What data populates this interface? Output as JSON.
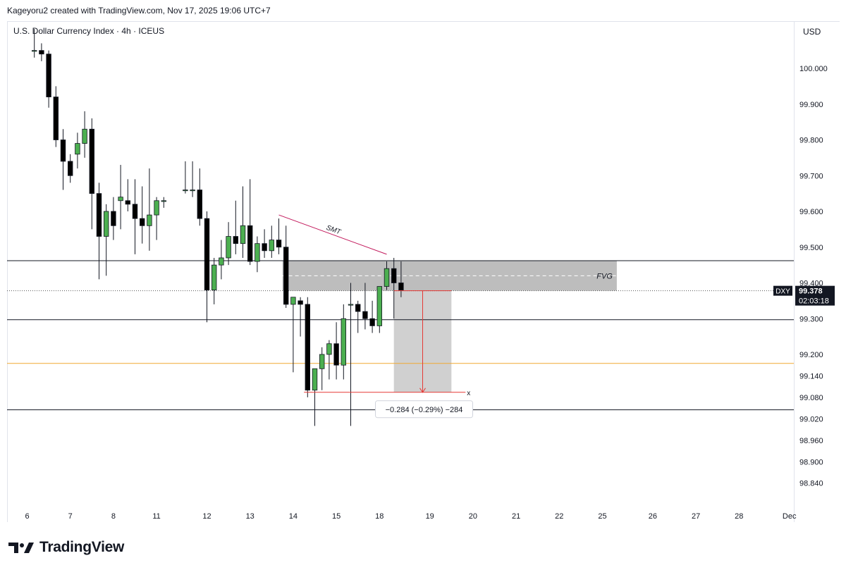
{
  "header": {
    "credit": "Kageyoru2 created with TradingView.com, Nov 17, 2025 19:06 UTC+7"
  },
  "chart_data": {
    "type": "candlestick",
    "symbol_label": "U.S. Dollar Currency Index · 4h · ICEUS",
    "currency": "USD",
    "y_ticks": [
      {
        "value": 100.0,
        "label": "100.000"
      },
      {
        "value": 99.9,
        "label": "99.900"
      },
      {
        "value": 99.8,
        "label": "99.800"
      },
      {
        "value": 99.7,
        "label": "99.700"
      },
      {
        "value": 99.6,
        "label": "99.600"
      },
      {
        "value": 99.5,
        "label": "99.500"
      },
      {
        "value": 99.4,
        "label": "99.400"
      },
      {
        "value": 99.3,
        "label": "99.300"
      },
      {
        "value": 99.2,
        "label": "99.200"
      },
      {
        "value": 99.14,
        "label": "99.140"
      },
      {
        "value": 99.08,
        "label": "99.080"
      },
      {
        "value": 99.02,
        "label": "99.020"
      },
      {
        "value": 98.96,
        "label": "98.960"
      },
      {
        "value": 98.9,
        "label": "98.900"
      },
      {
        "value": 98.84,
        "label": "98.840"
      }
    ],
    "x_ticks": [
      {
        "index": 0,
        "label": "6"
      },
      {
        "index": 6,
        "label": "7"
      },
      {
        "index": 12,
        "label": "8"
      },
      {
        "index": 18,
        "label": "11"
      },
      {
        "index": 25,
        "label": "12"
      },
      {
        "index": 31,
        "label": "13"
      },
      {
        "index": 37,
        "label": "14"
      },
      {
        "index": 43,
        "label": "15"
      },
      {
        "index": 49,
        "label": "18"
      },
      {
        "index": 56,
        "label": "19"
      },
      {
        "index": 62,
        "label": "20"
      },
      {
        "index": 68,
        "label": "21"
      },
      {
        "index": 74,
        "label": "22"
      },
      {
        "index": 80,
        "label": "25"
      },
      {
        "index": 87,
        "label": "26"
      },
      {
        "index": 93,
        "label": "27"
      },
      {
        "index": 99,
        "label": "28"
      },
      {
        "index": 106,
        "label": "Dec"
      }
    ],
    "candles": [
      {
        "i": 1,
        "o": 100.05,
        "h": 100.11,
        "l": 100.03,
        "c": 100.05
      },
      {
        "i": 2,
        "o": 100.05,
        "h": 100.07,
        "l": 100.02,
        "c": 100.04
      },
      {
        "i": 3,
        "o": 100.04,
        "h": 100.05,
        "l": 99.89,
        "c": 99.92
      },
      {
        "i": 4,
        "o": 99.92,
        "h": 99.95,
        "l": 99.78,
        "c": 99.8
      },
      {
        "i": 5,
        "o": 99.8,
        "h": 99.83,
        "l": 99.66,
        "c": 99.74
      },
      {
        "i": 6,
        "o": 99.74,
        "h": 99.76,
        "l": 99.68,
        "c": 99.7
      },
      {
        "i": 7,
        "o": 99.76,
        "h": 99.82,
        "l": 99.72,
        "c": 99.79
      },
      {
        "i": 8,
        "o": 99.79,
        "h": 99.88,
        "l": 99.75,
        "c": 99.83
      },
      {
        "i": 9,
        "o": 99.83,
        "h": 99.86,
        "l": 99.55,
        "c": 99.65
      },
      {
        "i": 10,
        "o": 99.65,
        "h": 99.68,
        "l": 99.41,
        "c": 99.53
      },
      {
        "i": 11,
        "o": 99.53,
        "h": 99.62,
        "l": 99.42,
        "c": 99.6
      },
      {
        "i": 12,
        "o": 99.6,
        "h": 99.64,
        "l": 99.52,
        "c": 99.56
      },
      {
        "i": 13,
        "o": 99.63,
        "h": 99.73,
        "l": 99.55,
        "c": 99.64
      },
      {
        "i": 14,
        "o": 99.63,
        "h": 99.69,
        "l": 99.6,
        "c": 99.62
      },
      {
        "i": 15,
        "o": 99.62,
        "h": 99.69,
        "l": 99.48,
        "c": 99.58
      },
      {
        "i": 16,
        "o": 99.58,
        "h": 99.67,
        "l": 99.51,
        "c": 99.56
      },
      {
        "i": 17,
        "o": 99.56,
        "h": 99.72,
        "l": 99.49,
        "c": 99.59
      },
      {
        "i": 18,
        "o": 99.59,
        "h": 99.64,
        "l": 99.52,
        "c": 99.63
      },
      {
        "i": 19,
        "o": 99.63,
        "h": 99.64,
        "l": 99.61,
        "c": 99.63
      },
      {
        "i": 22,
        "o": 99.66,
        "h": 99.74,
        "l": 99.65,
        "c": 99.66
      },
      {
        "i": 23,
        "o": 99.66,
        "h": 99.74,
        "l": 99.64,
        "c": 99.66
      },
      {
        "i": 24,
        "o": 99.66,
        "h": 99.72,
        "l": 99.56,
        "c": 99.58
      },
      {
        "i": 25,
        "o": 99.58,
        "h": 99.6,
        "l": 99.29,
        "c": 99.38
      },
      {
        "i": 26,
        "o": 99.38,
        "h": 99.47,
        "l": 99.34,
        "c": 99.45
      },
      {
        "i": 27,
        "o": 99.45,
        "h": 99.52,
        "l": 99.41,
        "c": 99.47
      },
      {
        "i": 28,
        "o": 99.47,
        "h": 99.57,
        "l": 99.45,
        "c": 99.53
      },
      {
        "i": 29,
        "o": 99.53,
        "h": 99.63,
        "l": 99.48,
        "c": 99.51
      },
      {
        "i": 30,
        "o": 99.51,
        "h": 99.67,
        "l": 99.47,
        "c": 99.56
      },
      {
        "i": 31,
        "o": 99.56,
        "h": 99.69,
        "l": 99.45,
        "c": 99.46
      },
      {
        "i": 32,
        "o": 99.46,
        "h": 99.53,
        "l": 99.43,
        "c": 99.51
      },
      {
        "i": 33,
        "o": 99.51,
        "h": 99.55,
        "l": 99.47,
        "c": 99.49
      },
      {
        "i": 34,
        "o": 99.49,
        "h": 99.56,
        "l": 99.47,
        "c": 99.52
      },
      {
        "i": 35,
        "o": 99.52,
        "h": 99.58,
        "l": 99.48,
        "c": 99.5
      },
      {
        "i": 36,
        "o": 99.5,
        "h": 99.56,
        "l": 99.33,
        "c": 99.34
      },
      {
        "i": 37,
        "o": 99.34,
        "h": 99.36,
        "l": 99.15,
        "c": 99.36
      },
      {
        "i": 38,
        "o": 99.35,
        "h": 99.36,
        "l": 99.25,
        "c": 99.34
      },
      {
        "i": 39,
        "o": 99.34,
        "h": 99.36,
        "l": 99.08,
        "c": 99.1
      },
      {
        "i": 40,
        "o": 99.1,
        "h": 99.15,
        "l": 99.0,
        "c": 99.16
      },
      {
        "i": 41,
        "o": 99.16,
        "h": 99.22,
        "l": 99.1,
        "c": 99.2
      },
      {
        "i": 42,
        "o": 99.2,
        "h": 99.24,
        "l": 99.13,
        "c": 99.23
      },
      {
        "i": 43,
        "o": 99.23,
        "h": 99.29,
        "l": 99.13,
        "c": 99.17
      },
      {
        "i": 44,
        "o": 99.17,
        "h": 99.34,
        "l": 99.13,
        "c": 99.3
      },
      {
        "i": 45,
        "o": 99.34,
        "h": 99.4,
        "l": 99.0,
        "c": 99.34
      },
      {
        "i": 46,
        "o": 99.34,
        "h": 99.35,
        "l": 99.26,
        "c": 99.32
      },
      {
        "i": 47,
        "o": 99.32,
        "h": 99.4,
        "l": 99.27,
        "c": 99.3
      },
      {
        "i": 48,
        "o": 99.3,
        "h": 99.35,
        "l": 99.26,
        "c": 99.28
      },
      {
        "i": 49,
        "o": 99.28,
        "h": 99.39,
        "l": 99.26,
        "c": 99.39
      },
      {
        "i": 50,
        "o": 99.39,
        "h": 99.46,
        "l": 99.38,
        "c": 99.44
      },
      {
        "i": 51,
        "o": 99.44,
        "h": 99.47,
        "l": 99.3,
        "c": 99.4
      },
      {
        "i": 52,
        "o": 99.4,
        "h": 99.46,
        "l": 99.36,
        "c": 99.38
      }
    ],
    "hlines": [
      {
        "price": 99.462,
        "color": "#131722"
      },
      {
        "price": 99.297,
        "color": "#131722"
      },
      {
        "price": 99.175,
        "color": "#f0a832"
      },
      {
        "price": 99.045,
        "color": "#131722"
      }
    ],
    "last_price_line": 99.378,
    "fvg": {
      "label": "FVG",
      "top": 99.462,
      "bottom": 99.378,
      "mid": 99.42,
      "from": 35.5,
      "to": 82
    },
    "smt": {
      "label": "SMT",
      "from": {
        "i": 35,
        "price": 99.59
      },
      "to": {
        "i": 50,
        "price": 99.48
      }
    },
    "measure": {
      "label": "−0.284 (−0.29%) −284",
      "from_price": 99.378,
      "to_price": 99.094,
      "from": 51,
      "to": 59,
      "end_mark": "x"
    },
    "price_badge": {
      "symbol": "DXY",
      "price": "99.378",
      "countdown": "02:03:18"
    }
  },
  "branding": {
    "logo_text": "TradingView"
  },
  "colors": {
    "bull": "#4caf50",
    "bear": "#000000",
    "fvg_fill": "#b2b2b2",
    "measure_fill": "#c8c8c8",
    "measure_line": "#e53935",
    "smt_line": "#c2185b"
  }
}
